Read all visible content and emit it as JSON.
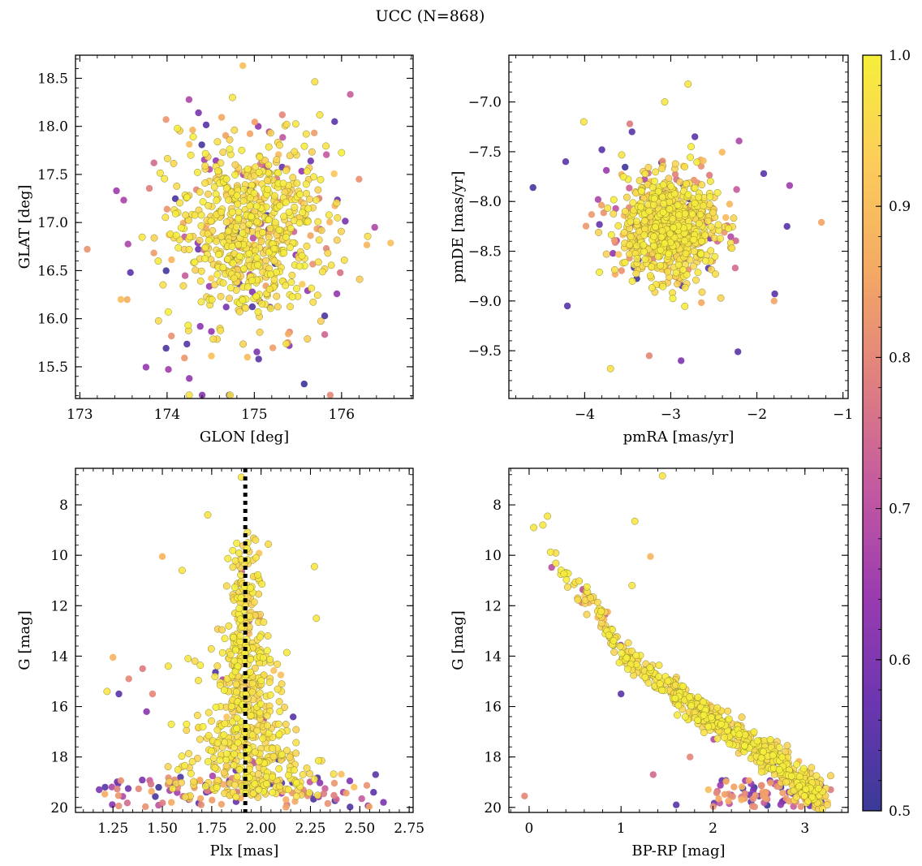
{
  "figure_title": "UCC (N=868)",
  "colorbar": {
    "range": [
      0.5,
      1.0
    ],
    "ticks": [
      0.5,
      0.6,
      0.7,
      0.8,
      0.9,
      1.0
    ],
    "tick_labels": [
      "0.5",
      "0.6",
      "0.7",
      "0.8",
      "0.9",
      "1.0"
    ],
    "colormap": "plasma",
    "colors": [
      "#3a3a98",
      "#6b36b0",
      "#9b3bb0",
      "#c45aa0",
      "#e0807f",
      "#f4a964",
      "#fccc5a",
      "#f6ef3a"
    ]
  },
  "chart_data": [
    {
      "id": "sky",
      "type": "scatter",
      "title": "",
      "xlabel": "GLON [deg]",
      "ylabel": "GLAT [deg]",
      "xlim": [
        172.95,
        176.82
      ],
      "ylim": [
        15.17,
        18.74
      ],
      "xticks": [
        173,
        174,
        175,
        176
      ],
      "xtick_labels": [
        "173",
        "174",
        "175",
        "176"
      ],
      "yticks": [
        15.5,
        16.0,
        16.5,
        17.0,
        17.5,
        18.0,
        18.5
      ],
      "ytick_labels": [
        "15.5",
        "16.0",
        "16.5",
        "17.0",
        "17.5",
        "18.0",
        "18.5"
      ],
      "y_inverted": false,
      "n_points": 868,
      "center": [
        174.95,
        16.92
      ],
      "spread": [
        0.45,
        0.45
      ],
      "points": [
        [
          175.92,
          18.05,
          0.55
        ],
        [
          176.38,
          16.95,
          0.68
        ],
        [
          173.42,
          17.33,
          0.65
        ],
        [
          173.58,
          16.48,
          0.55
        ],
        [
          173.47,
          16.2,
          0.9
        ],
        [
          175.4,
          15.72,
          0.62
        ],
        [
          175.05,
          15.58,
          0.55
        ],
        [
          174.05,
          15.82,
          0.82
        ],
        [
          174.92,
          15.6,
          0.9
        ],
        [
          175.32,
          18.12,
          0.8
        ],
        [
          173.85,
          17.62,
          0.75
        ],
        [
          176.2,
          17.45,
          0.82
        ],
        [
          174.38,
          15.92,
          0.62
        ],
        [
          175.75,
          18.12,
          0.98
        ],
        [
          174.75,
          18.3,
          0.98
        ],
        [
          175.18,
          16.12,
          0.6
        ]
      ]
    },
    {
      "id": "pm",
      "type": "scatter",
      "title": "",
      "xlabel": "pmRA [mas/yr]",
      "ylabel": "pmDE [mas/yr]",
      "xlim": [
        -4.88,
        -0.94
      ],
      "ylim": [
        -9.98,
        -6.53
      ],
      "xticks": [
        -4,
        -3,
        -2,
        -1
      ],
      "xtick_labels": [
        "−4",
        "−3",
        "−2",
        "−1"
      ],
      "yticks": [
        -9.5,
        -9.0,
        -8.5,
        -8.0,
        -7.5,
        -7.0
      ],
      "ytick_labels": [
        "−9.5",
        "−9.0",
        "−8.5",
        "−8.0",
        "−7.5",
        "−7.0"
      ],
      "y_inverted": false,
      "n_points": 868,
      "center": [
        -3.0,
        -8.25
      ],
      "spread": [
        0.28,
        0.25
      ],
      "points": [
        [
          -4.6,
          -7.86,
          0.52
        ],
        [
          -1.25,
          -8.21,
          0.85
        ],
        [
          -2.8,
          -6.82,
          0.98
        ],
        [
          -3.7,
          -9.68,
          0.97
        ],
        [
          -2.22,
          -9.51,
          0.55
        ],
        [
          -2.88,
          -9.6,
          0.6
        ],
        [
          -4.2,
          -9.05,
          0.55
        ],
        [
          -1.65,
          -8.25,
          0.55
        ],
        [
          -4.22,
          -7.6,
          0.55
        ],
        [
          -3.8,
          -7.48,
          0.55
        ],
        [
          -3.45,
          -7.3,
          0.55
        ],
        [
          -2.72,
          -7.35,
          0.55
        ],
        [
          -1.92,
          -7.72,
          0.55
        ],
        [
          -1.62,
          -7.84,
          0.65
        ],
        [
          -3.07,
          -7.0,
          0.98
        ],
        [
          -4.01,
          -7.2,
          0.98
        ],
        [
          -1.8,
          -9.0,
          0.85
        ],
        [
          -3.25,
          -9.55,
          0.8
        ]
      ]
    },
    {
      "id": "plx",
      "type": "scatter",
      "title": "",
      "xlabel": "Plx [mas]",
      "ylabel": "G [mag]",
      "xlim": [
        1.06,
        2.77
      ],
      "ylim": [
        20.2,
        6.55
      ],
      "xticks": [
        1.25,
        1.5,
        1.75,
        2.0,
        2.25,
        2.5,
        2.75
      ],
      "xtick_labels": [
        "1.25",
        "1.50",
        "1.75",
        "2.00",
        "2.25",
        "2.50",
        "2.75"
      ],
      "yticks": [
        8,
        10,
        12,
        14,
        16,
        18,
        20
      ],
      "ytick_labels": [
        "8",
        "10",
        "12",
        "14",
        "16",
        "18",
        "20"
      ],
      "y_inverted": true,
      "vline_x": 1.92,
      "n_points": 868,
      "points": [
        [
          1.9,
          6.9,
          0.98
        ],
        [
          1.73,
          8.4,
          0.98
        ],
        [
          1.5,
          10.05,
          0.88
        ],
        [
          1.6,
          10.6,
          0.98
        ],
        [
          2.27,
          10.45,
          0.98
        ],
        [
          2.28,
          12.5,
          0.98
        ],
        [
          1.22,
          15.4,
          0.98
        ],
        [
          1.25,
          14.05,
          0.88
        ],
        [
          1.28,
          15.5,
          0.55
        ],
        [
          1.33,
          14.9,
          0.8
        ],
        [
          1.4,
          14.5,
          0.78
        ],
        [
          1.42,
          16.2,
          0.62
        ],
        [
          1.45,
          15.5,
          0.8
        ],
        [
          1.53,
          14.4,
          0.98
        ],
        [
          1.63,
          14.1,
          0.98
        ],
        [
          2.58,
          18.7,
          0.55
        ],
        [
          2.57,
          19.4,
          0.55
        ],
        [
          2.62,
          19.8,
          0.6
        ],
        [
          1.18,
          19.3,
          0.6
        ],
        [
          1.21,
          19.2,
          0.55
        ]
      ]
    },
    {
      "id": "cmd",
      "type": "scatter",
      "title": "",
      "xlabel": "BP-RP [mag]",
      "ylabel": "G [mag]",
      "xlim": [
        -0.22,
        3.47
      ],
      "ylim": [
        20.2,
        6.55
      ],
      "xticks": [
        0,
        1,
        2,
        3
      ],
      "xtick_labels": [
        "0",
        "1",
        "2",
        "3"
      ],
      "yticks": [
        8,
        10,
        12,
        14,
        16,
        18,
        20
      ],
      "ytick_labels": [
        "8",
        "10",
        "12",
        "14",
        "16",
        "18",
        "20"
      ],
      "y_inverted": true,
      "n_points": 868,
      "sequence": [
        [
          0.1,
          8.85
        ],
        [
          0.25,
          10.3
        ],
        [
          0.5,
          11.3
        ],
        [
          0.8,
          12.7
        ],
        [
          1.0,
          14.0
        ],
        [
          1.4,
          15.0
        ],
        [
          1.8,
          16.1
        ],
        [
          2.2,
          17.1
        ],
        [
          2.6,
          18.0
        ],
        [
          2.9,
          18.9
        ],
        [
          3.15,
          19.6
        ]
      ],
      "points": [
        [
          1.45,
          6.85,
          0.98
        ],
        [
          0.2,
          8.45,
          0.98
        ],
        [
          0.05,
          8.9,
          0.98
        ],
        [
          0.15,
          8.8,
          0.98
        ],
        [
          1.15,
          8.65,
          0.98
        ],
        [
          1.32,
          10.05,
          0.88
        ],
        [
          1.12,
          11.2,
          0.98
        ],
        [
          1.0,
          15.5,
          0.55
        ],
        [
          1.6,
          19.9,
          0.55
        ],
        [
          -0.05,
          19.55,
          0.8
        ],
        [
          1.35,
          18.7,
          0.75
        ],
        [
          1.75,
          18.0,
          0.8
        ],
        [
          1.95,
          19.3,
          0.9
        ],
        [
          3.18,
          19.8,
          0.55
        ],
        [
          3.28,
          19.3,
          0.78
        ]
      ]
    }
  ]
}
